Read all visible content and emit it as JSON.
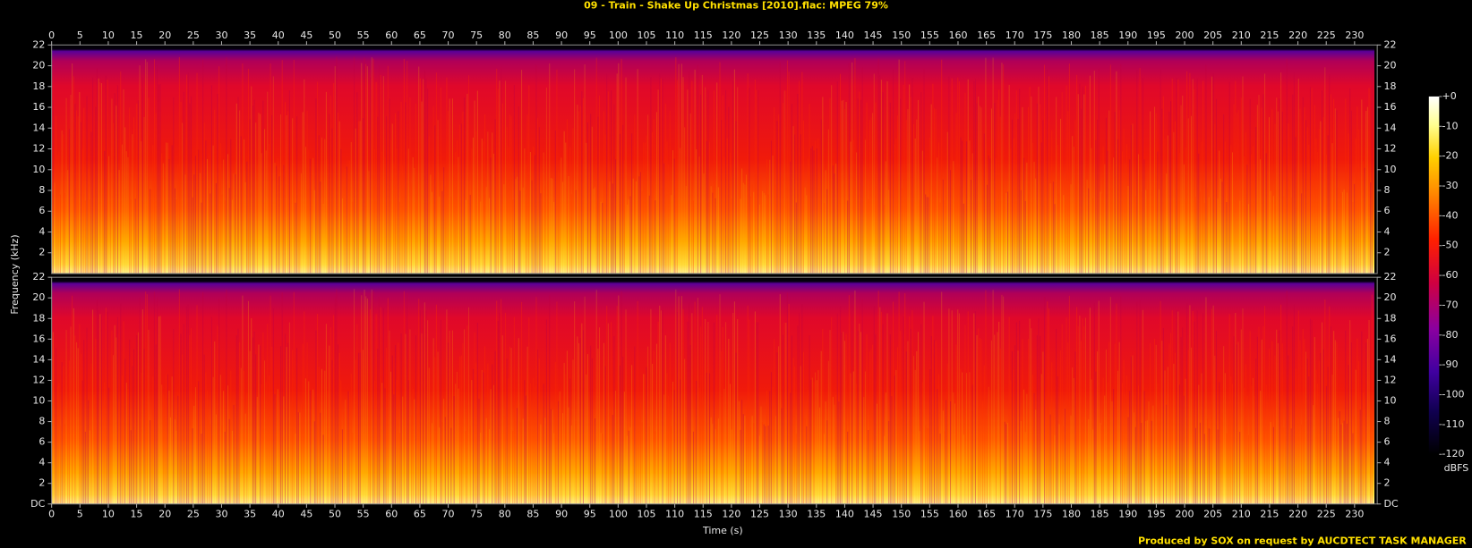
{
  "title": "09 - Train - Shake Up Christmas [2010].flac: MPEG 79%",
  "ylabel": "Frequency (kHz)",
  "xlabel": "Time (s)",
  "footer": "Produced by SOX on request by AUCDTECT TASK MANAGER",
  "colorbar": {
    "label": "dBFS",
    "lim": [
      -120,
      0
    ],
    "ticks": [
      {
        "value": 0,
        "label": "+0"
      },
      -10,
      -20,
      -30,
      -40,
      -50,
      -60,
      -70,
      -80,
      -90,
      -100,
      -110,
      -120
    ]
  },
  "chart_data": [
    {
      "type": "spectrogram",
      "xlim": [
        0,
        234
      ],
      "ylim": [
        0,
        22
      ],
      "xticks": [
        0,
        5,
        10,
        15,
        20,
        25,
        30,
        35,
        40,
        45,
        50,
        55,
        60,
        65,
        70,
        75,
        80,
        85,
        90,
        95,
        100,
        105,
        110,
        115,
        120,
        125,
        130,
        135,
        140,
        145,
        150,
        155,
        160,
        165,
        170,
        175,
        180,
        185,
        190,
        195,
        200,
        205,
        210,
        215,
        220,
        225,
        230
      ],
      "yticks": [
        2,
        4,
        6,
        8,
        10,
        12,
        14,
        16,
        18,
        20,
        22
      ]
    },
    {
      "type": "spectrogram",
      "xlim": [
        0,
        234
      ],
      "ylim": [
        0,
        22
      ],
      "xticks": [
        0,
        5,
        10,
        15,
        20,
        25,
        30,
        35,
        40,
        45,
        50,
        55,
        60,
        65,
        70,
        75,
        80,
        85,
        90,
        95,
        100,
        105,
        110,
        115,
        120,
        125,
        130,
        135,
        140,
        145,
        150,
        155,
        160,
        165,
        170,
        175,
        180,
        185,
        190,
        195,
        200,
        205,
        210,
        215,
        220,
        225,
        230
      ],
      "yticks": [
        {
          "value": 0,
          "label": "DC"
        },
        2,
        4,
        6,
        8,
        10,
        12,
        14,
        16,
        18,
        20,
        22
      ]
    }
  ]
}
